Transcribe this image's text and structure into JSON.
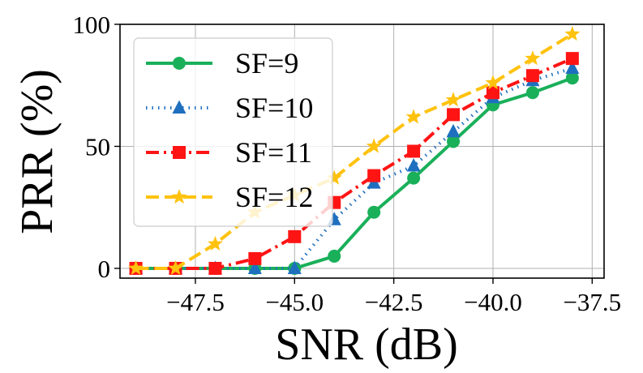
{
  "chart_data": {
    "type": "line",
    "xlabel": "SNR (dB)",
    "ylabel": "PRR (%)",
    "xlim": [
      -49.4,
      -37.2
    ],
    "ylim": [
      -4,
      100
    ],
    "x": [
      -49,
      -48,
      -47,
      -46,
      -45,
      -44,
      -43,
      -42,
      -41,
      -40,
      -39,
      -38
    ],
    "xticks": [
      -47.5,
      -45.0,
      -42.5,
      -40.0,
      -37.5
    ],
    "xtick_labels": [
      "−47.5",
      "−45.0",
      "−42.5",
      "−40.0",
      "−37.5"
    ],
    "yticks": [
      0,
      50,
      100
    ],
    "ytick_labels": [
      "0",
      "50",
      "100"
    ],
    "grid": true,
    "legend_position": "top-left",
    "series": [
      {
        "name": "SF=9",
        "color": "#1ab05a",
        "dash": "solid",
        "marker": "circle",
        "values": [
          0,
          0,
          0,
          0,
          0,
          5,
          23,
          37,
          52,
          67,
          72,
          78
        ]
      },
      {
        "name": "SF=10",
        "color": "#1f6fbf",
        "dash": "dotted",
        "marker": "triangle",
        "values": [
          0,
          0,
          0,
          0,
          0,
          20,
          35,
          42,
          56,
          70,
          77,
          82
        ]
      },
      {
        "name": "SF=11",
        "color": "#ff1414",
        "dash": "dashdot",
        "marker": "square",
        "values": [
          0,
          0,
          0,
          4,
          13,
          27,
          38,
          48,
          63,
          72,
          79,
          86
        ]
      },
      {
        "name": "SF=12",
        "color": "#ffc20e",
        "dash": "dashed",
        "marker": "star",
        "values": [
          0,
          0,
          10,
          23,
          30,
          37,
          50,
          62,
          69,
          76,
          86,
          96
        ]
      }
    ]
  }
}
